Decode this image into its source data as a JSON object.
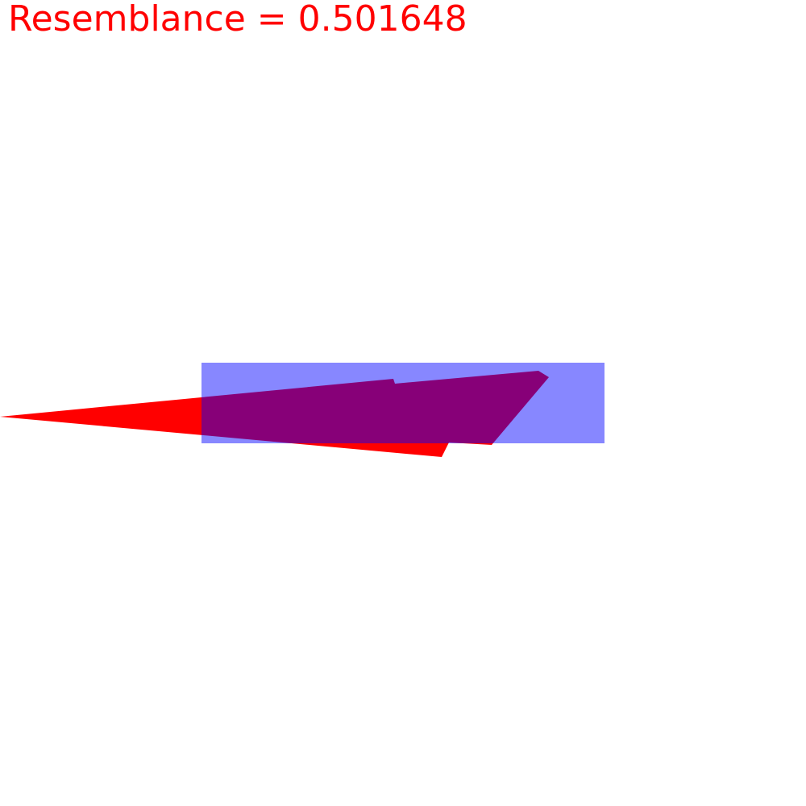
{
  "score": {
    "text": "Resemblance = 0.501648",
    "label": "Resemblance",
    "value": 0.501648
  },
  "colors": {
    "text": "#ff0000",
    "shape_fill": "#ff0000",
    "box_fill": "#0000ff",
    "box_opacity": 0.47,
    "background": "#ffffff"
  }
}
